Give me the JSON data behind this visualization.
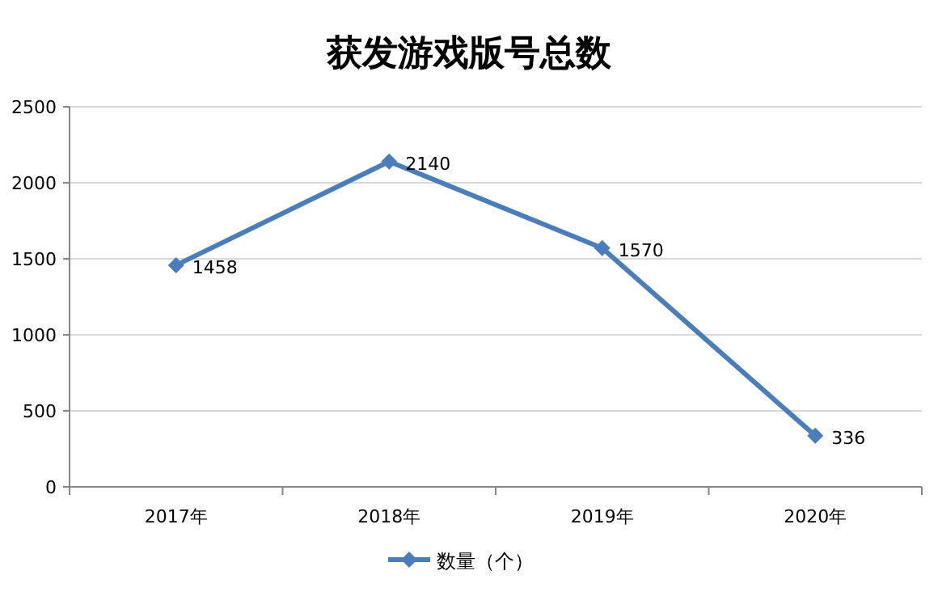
{
  "chart_data": {
    "type": "line",
    "title": "获发游戏版号总数",
    "categories": [
      "2017年",
      "2018年",
      "2019年",
      "2020年"
    ],
    "series": [
      {
        "name": "数量（个）",
        "color": "#4a7ebb",
        "values": [
          1458,
          2140,
          1570,
          336
        ]
      }
    ],
    "ylim": [
      0,
      2500
    ],
    "yticks": [
      0,
      500,
      1000,
      1500,
      2000,
      2500
    ],
    "grid": "y",
    "legend": "bottom",
    "marker": "diamond",
    "data_labels": true
  }
}
